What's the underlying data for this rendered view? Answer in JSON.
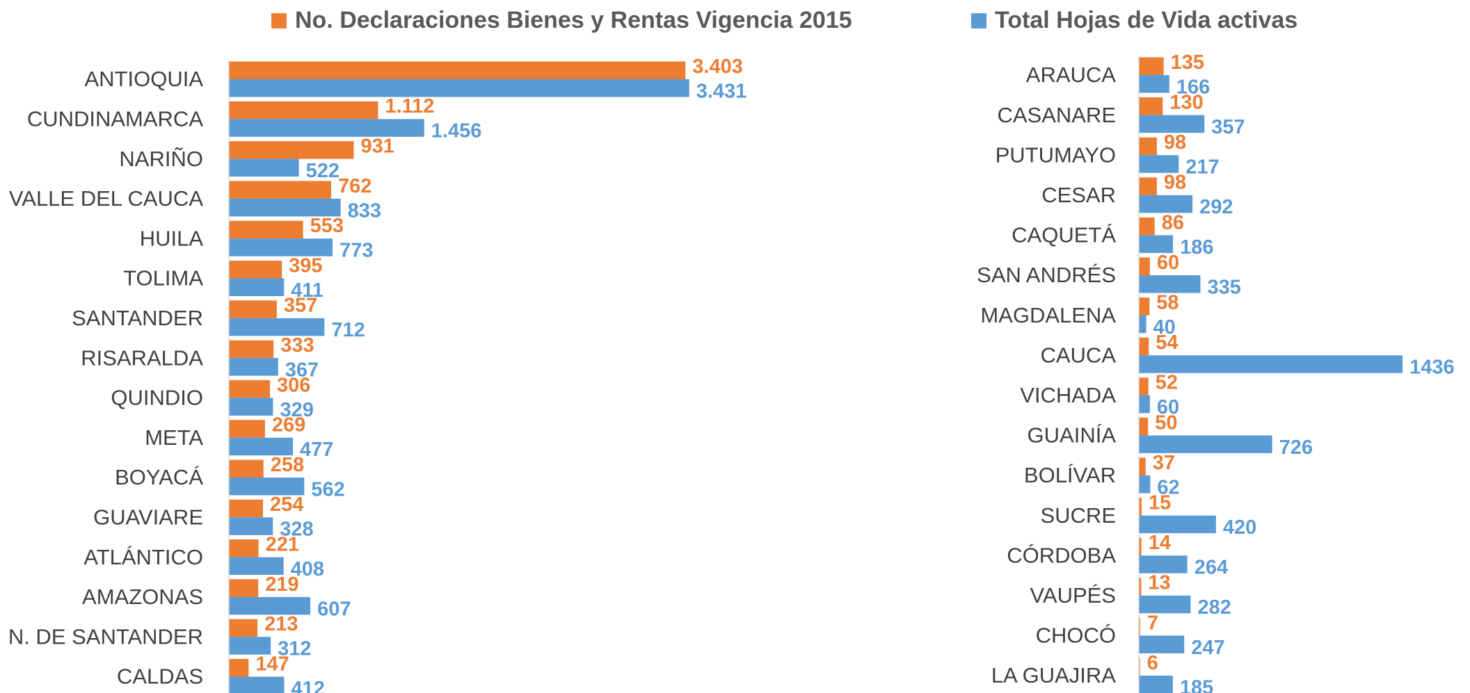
{
  "chart_data": [
    {
      "type": "bar",
      "orientation": "horizontal",
      "categories": [
        "ANTIOQUIA",
        "CUNDINAMARCA",
        "NARIÑO",
        "VALLE DEL CAUCA",
        "HUILA",
        "TOLIMA",
        "SANTANDER",
        "RISARALDA",
        "QUINDIO",
        "META",
        "BOYACÁ",
        "GUAVIARE",
        "ATLÁNTICO",
        "AMAZONAS",
        "N. DE SANTANDER",
        "CALDAS"
      ],
      "series": [
        {
          "name": "No. Declaraciones Bienes y Rentas Vigencia 2015",
          "color": "#ED7D31",
          "values": [
            3403,
            1112,
            931,
            762,
            553,
            395,
            357,
            333,
            306,
            269,
            258,
            254,
            221,
            219,
            213,
            147
          ],
          "value_labels": [
            "3.403",
            "1.112",
            "931",
            "762",
            "553",
            "395",
            "357",
            "333",
            "306",
            "269",
            "258",
            "254",
            "221",
            "219",
            "213",
            "147"
          ]
        },
        {
          "name": "Total Hojas de Vida  activas",
          "color": "#5B9BD5",
          "values": [
            3431,
            1456,
            522,
            833,
            773,
            411,
            712,
            367,
            329,
            477,
            562,
            328,
            408,
            607,
            312,
            412
          ],
          "value_labels": [
            "3.431",
            "1.456",
            "522",
            "833",
            "773",
            "411",
            "712",
            "367",
            "329",
            "477",
            "562",
            "328",
            "408",
            "607",
            "312",
            "412"
          ]
        }
      ],
      "xlim": [
        0,
        3500
      ],
      "legend": "top"
    },
    {
      "type": "bar",
      "orientation": "horizontal",
      "categories": [
        "ARAUCA",
        "CASANARE",
        "PUTUMAYO",
        "CESAR",
        "CAQUETÁ",
        "SAN ANDRÉS",
        "MAGDALENA",
        "CAUCA",
        "VICHADA",
        "GUAINÍA",
        "BOLÍVAR",
        "SUCRE",
        "CÓRDOBA",
        "VAUPÉS",
        "CHOCÓ",
        "LA GUAJIRA"
      ],
      "series": [
        {
          "color": "#ED7D31",
          "values": [
            135,
            130,
            98,
            98,
            86,
            60,
            58,
            54,
            52,
            50,
            37,
            15,
            14,
            13,
            7,
            6
          ]
        },
        {
          "color": "#5B9BD5",
          "values": [
            166,
            357,
            217,
            292,
            186,
            335,
            40,
            1436,
            60,
            726,
            62,
            420,
            264,
            282,
            247,
            185
          ]
        }
      ],
      "xlim": [
        0,
        1500
      ]
    }
  ]
}
